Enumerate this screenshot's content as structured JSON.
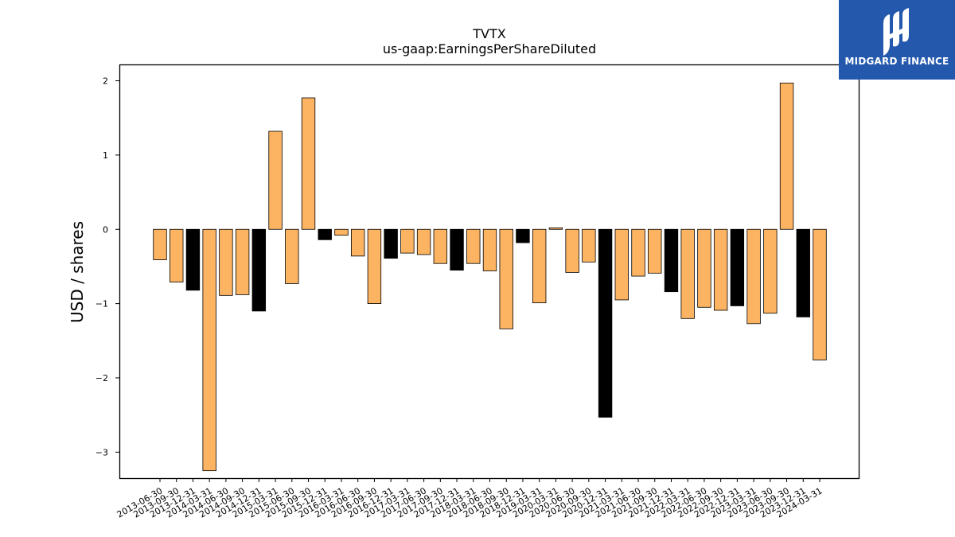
{
  "chart_data": {
    "type": "bar",
    "title": "TVTX",
    "subtitle": "us-gaap:EarningsPerShareDiluted",
    "xlabel": "",
    "ylabel": "USD / shares",
    "ylim": [
      -3.35,
      2.22
    ],
    "yticks": [
      2,
      1,
      0,
      -1,
      -2,
      -3
    ],
    "ytick_labels": [
      "2",
      "1",
      "0",
      "−1",
      "−2",
      "−3"
    ],
    "grid": false,
    "colors": {
      "quarter": "#fdb462",
      "year_end": "#000000",
      "edge": "#000000"
    },
    "categories": [
      "2013-06-30",
      "2013-09-30",
      "2013-12-31",
      "2014-03-31",
      "2014-06-30",
      "2014-09-30",
      "2014-12-31",
      "2015-03-31",
      "2015-06-30",
      "2015-09-30",
      "2015-12-31",
      "2016-03-31",
      "2016-06-30",
      "2016-09-30",
      "2016-12-31",
      "2017-03-31",
      "2017-06-30",
      "2017-09-30",
      "2017-12-31",
      "2018-03-31",
      "2018-06-30",
      "2018-09-30",
      "2018-12-31",
      "2019-03-31",
      "2020-03-31",
      "2020-06-30",
      "2020-09-30",
      "2020-12-31",
      "2021-03-31",
      "2021-06-30",
      "2021-09-30",
      "2021-12-31",
      "2022-03-31",
      "2022-06-30",
      "2022-09-30",
      "2022-12-31",
      "2023-03-31",
      "2023-06-30",
      "2023-09-30",
      "2023-12-31",
      "2024-03-31"
    ],
    "values": [
      -0.41,
      -0.71,
      -0.82,
      -3.25,
      -0.89,
      -0.88,
      -1.1,
      1.32,
      -0.73,
      1.77,
      -0.14,
      -0.08,
      -0.36,
      -1.0,
      -0.39,
      -0.32,
      -0.34,
      -0.46,
      -0.55,
      -0.46,
      -0.56,
      -1.34,
      -0.18,
      -0.99,
      0.02,
      -0.58,
      -0.44,
      -2.53,
      -0.95,
      -0.63,
      -0.59,
      -0.84,
      -1.2,
      -1.05,
      -1.09,
      -1.03,
      -1.27,
      -1.13,
      1.97,
      -1.18,
      -1.76
    ],
    "year_end": [
      false,
      false,
      true,
      false,
      false,
      false,
      true,
      false,
      false,
      false,
      true,
      false,
      false,
      false,
      true,
      false,
      false,
      false,
      true,
      false,
      false,
      false,
      true,
      false,
      false,
      false,
      false,
      true,
      false,
      false,
      false,
      true,
      false,
      false,
      false,
      true,
      false,
      false,
      false,
      true,
      false
    ]
  },
  "logo": {
    "text": "MIDGARD FINANCE",
    "icon": "midgard-logo-icon"
  }
}
